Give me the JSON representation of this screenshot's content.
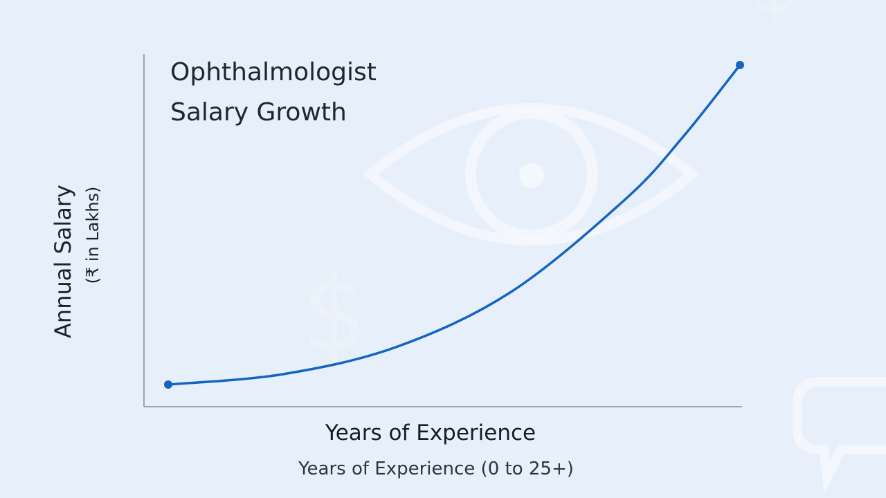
{
  "chart_data": {
    "type": "line",
    "title_lines": [
      "Ophthalmologist",
      "Salary Growth"
    ],
    "xlabel": "Years of Experience",
    "xlabel_sub": "Years of Experience (0 to 25+)",
    "ylabel": "Annual Salary",
    "ylabel_sub": "(₹ in Lakhs)",
    "xlim": [
      0,
      25
    ],
    "ylim": [
      0,
      100
    ],
    "series": [
      {
        "x": [
          0,
          5,
          10,
          15,
          20,
          22.5,
          25
        ],
        "y": [
          6,
          9,
          17,
          33,
          60,
          78,
          99
        ]
      }
    ],
    "endpoints": [
      [
        0,
        6
      ],
      [
        25,
        99
      ]
    ],
    "colors": {
      "line": "#1565c0",
      "axis": "#9aa4b2",
      "background": "#e6effa"
    },
    "background_icons": [
      "eye-icon",
      "dollar-icon",
      "chat-bubble-icon"
    ],
    "grid": false
  }
}
